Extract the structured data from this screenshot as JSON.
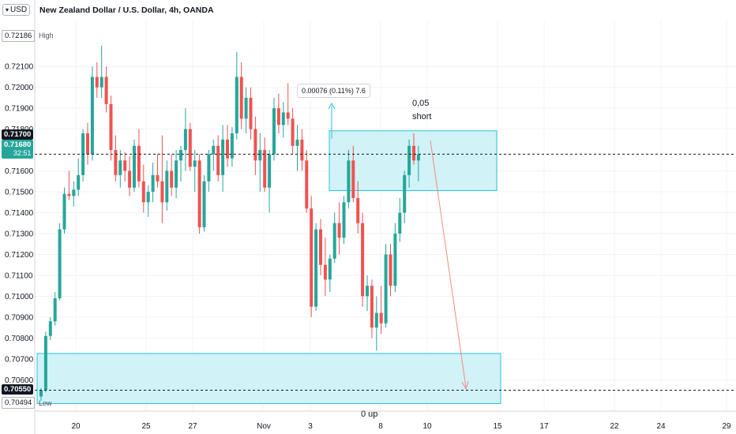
{
  "header": {
    "currency": "USD",
    "title": "New Zealand Dollar / U.S. Dollar, 4h, OANDA"
  },
  "price_scale": {
    "high_value": "0.72186",
    "high_label": "High",
    "low_value": "0.70494",
    "low_label": "Low",
    "line_value": "0.71700",
    "current_value": "0.71680",
    "countdown": "32:51",
    "bottom_level": "0.70550"
  },
  "annotations": {
    "measure": "0.00076 (0.11%) 7.6",
    "lot": "0,05",
    "direction": "short",
    "bottom": "0 up"
  },
  "colors": {
    "up": "#26a69a",
    "down": "#ef5350",
    "zone_fill": "#cff1f7",
    "zone_border": "#26c6da",
    "arrow": "#f28b82",
    "line_badge": "#131722",
    "current_badge": "#26a69a"
  },
  "chart_data": {
    "type": "candlestick",
    "symbol": "NZD/USD",
    "timeframe": "4h",
    "ylim": [
      0.7045,
      0.7232
    ],
    "y_ticks": [
      0.721,
      0.72,
      0.719,
      0.718,
      0.716,
      0.715,
      0.714,
      0.713,
      0.712,
      0.711,
      0.71,
      0.709,
      0.708,
      0.707,
      0.706
    ],
    "y_tick_labels": [
      "0.72100",
      "0.72000",
      "0.71900",
      "0.71800",
      "0.71600",
      "0.71500",
      "0.71400",
      "0.71300",
      "0.71200",
      "0.71100",
      "0.71000",
      "0.70900",
      "0.70800",
      "0.70700",
      "0.70600"
    ],
    "x_ticks": [
      "20",
      "25",
      "27",
      "Nov",
      "3",
      "8",
      "10",
      "15",
      "17",
      "22",
      "24",
      "29"
    ],
    "zones": [
      {
        "role": "sell zone",
        "from_index": 62,
        "to_index": 99,
        "low": 0.71506,
        "high": 0.71792
      },
      {
        "role": "target zone",
        "from_index": 0,
        "to_index": 100,
        "low": 0.70486,
        "high": 0.70726
      }
    ],
    "levels": [
      0.7168,
      0.7055
    ],
    "candles": [
      [
        0.7052,
        0.7056,
        0.705,
        0.7055
      ],
      [
        0.7055,
        0.7083,
        0.7054,
        0.7081
      ],
      [
        0.7081,
        0.709,
        0.7079,
        0.7088
      ],
      [
        0.7088,
        0.7102,
        0.7086,
        0.7099
      ],
      [
        0.7099,
        0.7135,
        0.7098,
        0.7132
      ],
      [
        0.7132,
        0.7152,
        0.713,
        0.7149
      ],
      [
        0.7149,
        0.716,
        0.7146,
        0.7148
      ],
      [
        0.7148,
        0.7155,
        0.7143,
        0.7151
      ],
      [
        0.7151,
        0.7166,
        0.7148,
        0.7158
      ],
      [
        0.7158,
        0.718,
        0.7155,
        0.7178
      ],
      [
        0.7178,
        0.7183,
        0.7163,
        0.7168
      ],
      [
        0.7168,
        0.721,
        0.7165,
        0.7205
      ],
      [
        0.7205,
        0.7212,
        0.7195,
        0.72
      ],
      [
        0.72,
        0.722,
        0.7195,
        0.7205
      ],
      [
        0.7205,
        0.721,
        0.7188,
        0.7192
      ],
      [
        0.7192,
        0.7196,
        0.7165,
        0.717
      ],
      [
        0.717,
        0.7177,
        0.7155,
        0.7158
      ],
      [
        0.7158,
        0.717,
        0.7152,
        0.7165
      ],
      [
        0.7165,
        0.7169,
        0.7155,
        0.716
      ],
      [
        0.716,
        0.7167,
        0.7148,
        0.7152
      ],
      [
        0.7152,
        0.7175,
        0.715,
        0.7172
      ],
      [
        0.7172,
        0.718,
        0.7152,
        0.7155
      ],
      [
        0.7155,
        0.7163,
        0.714,
        0.7145
      ],
      [
        0.7145,
        0.7153,
        0.7138,
        0.715
      ],
      [
        0.715,
        0.7164,
        0.7145,
        0.7158
      ],
      [
        0.7158,
        0.7168,
        0.7152,
        0.7155
      ],
      [
        0.7155,
        0.7177,
        0.7135,
        0.7145
      ],
      [
        0.7145,
        0.7165,
        0.7141,
        0.716
      ],
      [
        0.716,
        0.7168,
        0.7148,
        0.7152
      ],
      [
        0.7152,
        0.717,
        0.7147,
        0.7165
      ],
      [
        0.7165,
        0.7172,
        0.7155,
        0.717
      ],
      [
        0.717,
        0.719,
        0.716,
        0.718
      ],
      [
        0.718,
        0.7183,
        0.716,
        0.7162
      ],
      [
        0.7162,
        0.717,
        0.715,
        0.7165
      ],
      [
        0.7165,
        0.7168,
        0.713,
        0.7133
      ],
      [
        0.7133,
        0.7158,
        0.7131,
        0.7155
      ],
      [
        0.7155,
        0.717,
        0.715,
        0.7168
      ],
      [
        0.7168,
        0.7175,
        0.716,
        0.7172
      ],
      [
        0.7172,
        0.7177,
        0.7155,
        0.7158
      ],
      [
        0.7158,
        0.7182,
        0.715,
        0.7175
      ],
      [
        0.7175,
        0.7182,
        0.7162,
        0.7166
      ],
      [
        0.7166,
        0.7181,
        0.7162,
        0.7178
      ],
      [
        0.7178,
        0.7217,
        0.7175,
        0.7205
      ],
      [
        0.7205,
        0.7212,
        0.718,
        0.7185
      ],
      [
        0.7185,
        0.72,
        0.7178,
        0.7195
      ],
      [
        0.7195,
        0.72,
        0.7175,
        0.718
      ],
      [
        0.718,
        0.7186,
        0.7158,
        0.7165
      ],
      [
        0.7165,
        0.7178,
        0.715,
        0.717
      ],
      [
        0.717,
        0.7176,
        0.715,
        0.7152
      ],
      [
        0.7152,
        0.717,
        0.714,
        0.7168
      ],
      [
        0.7168,
        0.7195,
        0.7165,
        0.719
      ],
      [
        0.719,
        0.7197,
        0.7178,
        0.7182
      ],
      [
        0.7182,
        0.7193,
        0.7176,
        0.7188
      ],
      [
        0.7188,
        0.7202,
        0.7182,
        0.7185
      ],
      [
        0.7185,
        0.719,
        0.7168,
        0.7172
      ],
      [
        0.7172,
        0.7182,
        0.716,
        0.7175
      ],
      [
        0.7175,
        0.718,
        0.716,
        0.7165
      ],
      [
        0.7165,
        0.717,
        0.714,
        0.7142
      ],
      [
        0.7142,
        0.7148,
        0.709,
        0.7095
      ],
      [
        0.7095,
        0.7135,
        0.7093,
        0.7132
      ],
      [
        0.7132,
        0.7137,
        0.711,
        0.7115
      ],
      [
        0.7115,
        0.7128,
        0.71,
        0.7108
      ],
      [
        0.7108,
        0.712,
        0.7102,
        0.7118
      ],
      [
        0.7118,
        0.714,
        0.7116,
        0.7135
      ],
      [
        0.7135,
        0.7145,
        0.712,
        0.7128
      ],
      [
        0.7128,
        0.7148,
        0.7125,
        0.7145
      ],
      [
        0.7145,
        0.717,
        0.7142,
        0.7165
      ],
      [
        0.7165,
        0.7172,
        0.7145,
        0.7147
      ],
      [
        0.7147,
        0.7155,
        0.713,
        0.7135
      ],
      [
        0.7135,
        0.714,
        0.7095,
        0.71
      ],
      [
        0.71,
        0.711,
        0.7093,
        0.7105
      ],
      [
        0.7105,
        0.7108,
        0.708,
        0.7085
      ],
      [
        0.7085,
        0.71,
        0.7074,
        0.7092
      ],
      [
        0.7092,
        0.7105,
        0.7082,
        0.7087
      ],
      [
        0.7087,
        0.7125,
        0.7085,
        0.712
      ],
      [
        0.712,
        0.7125,
        0.71,
        0.7105
      ],
      [
        0.7105,
        0.7135,
        0.7102,
        0.713
      ],
      [
        0.713,
        0.7147,
        0.7126,
        0.714
      ],
      [
        0.714,
        0.716,
        0.7135,
        0.7158
      ],
      [
        0.7158,
        0.7175,
        0.7152,
        0.7172
      ],
      [
        0.7172,
        0.7178,
        0.7163,
        0.7165
      ],
      [
        0.7165,
        0.7172,
        0.7155,
        0.7168
      ]
    ]
  }
}
